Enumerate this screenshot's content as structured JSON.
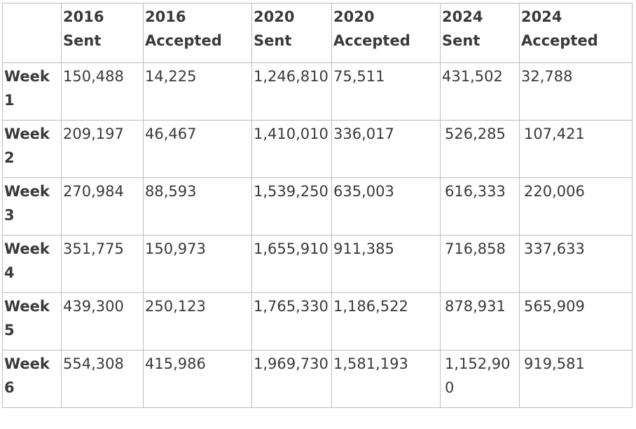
{
  "table": {
    "headers": [
      "",
      "2016 Sent",
      "2016 Accepted",
      "2020 Sent",
      "2020 Accepted",
      "2024 Sent",
      "2024 Accepted"
    ],
    "rows": [
      {
        "label": "Week 1",
        "cells": [
          "150,488",
          "14,225",
          "1,246,810",
          "75,511",
          "431,502",
          "32,788"
        ]
      },
      {
        "label": "Week 2",
        "cells": [
          "209,197",
          "46,467",
          "1,410,010",
          "336,017",
          "526,285",
          "107,421"
        ]
      },
      {
        "label": "Week 3",
        "cells": [
          "270,984",
          "88,593",
          "1,539,250",
          "635,003",
          "616,333",
          "220,006"
        ]
      },
      {
        "label": "Week 4",
        "cells": [
          "351,775",
          "150,973",
          "1,655,910",
          "911,385",
          "716,858",
          "337,633"
        ]
      },
      {
        "label": "Week 5",
        "cells": [
          "439,300",
          "250,123",
          "1,765,330",
          "1,186,522",
          "878,931",
          "565,909"
        ]
      },
      {
        "label": "Week 6",
        "cells": [
          "554,308",
          "415,986",
          "1,969,730",
          "1,581,193",
          "1,152,900",
          "919,581"
        ]
      }
    ]
  }
}
